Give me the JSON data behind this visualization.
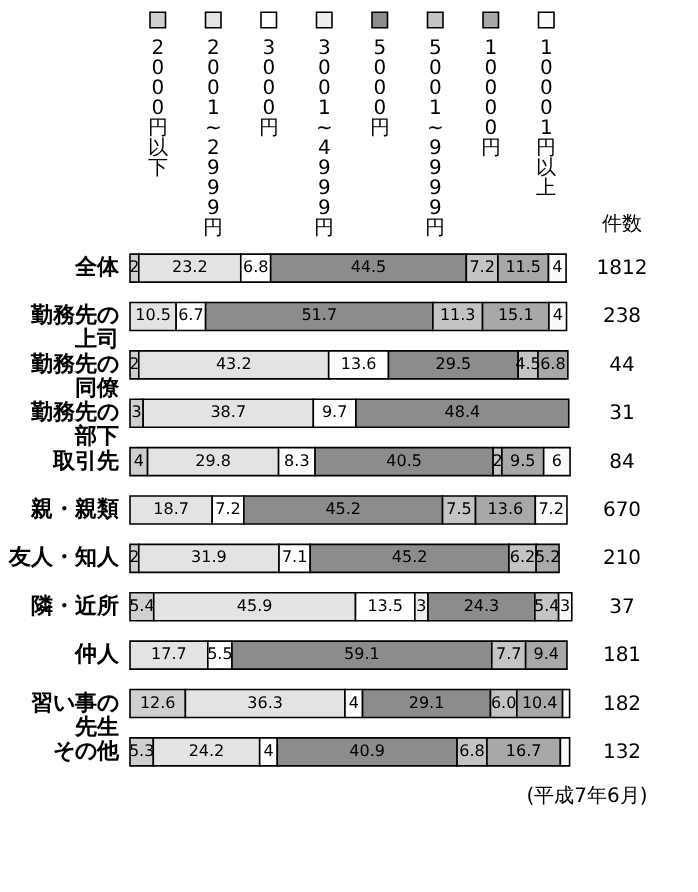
{
  "chart_data": {
    "type": "bar",
    "orientation": "horizontal",
    "stacked": true,
    "legend": "top",
    "tick_labels": "y",
    "grid": false,
    "xlim": [
      0,
      101
    ],
    "categories": [
      "全体",
      "勤務先の上司",
      "勤務先の同僚",
      "勤務先の部下",
      "取引先",
      "親・親類",
      "友人・知人",
      "隣・近所",
      "仲人",
      "習い事の先生",
      "その他"
    ],
    "series": [
      {
        "name": "2000円以下",
        "color": "#cfcfcf",
        "values": [
          2,
          null,
          2,
          3,
          4,
          null,
          2,
          5.4,
          null,
          12.6,
          5.3
        ],
        "value_labels": [
          "2",
          null,
          "2",
          "3",
          "4",
          null,
          "2",
          "5.4",
          null,
          "12.6",
          "5.3"
        ]
      },
      {
        "name": "2001~2999円",
        "color": "#e3e3e3",
        "values": [
          23.2,
          10.5,
          43.2,
          38.7,
          29.8,
          18.7,
          31.9,
          45.9,
          17.7,
          36.3,
          24.2
        ],
        "value_labels": [
          "23.2",
          "10.5",
          "43.2",
          "38.7",
          "29.8",
          "18.7",
          "31.9",
          "45.9",
          "17.7",
          "36.3",
          "24.2"
        ]
      },
      {
        "name": "3000円",
        "color": "#ffffff",
        "values": [
          6.8,
          6.7,
          13.6,
          9.7,
          8.3,
          7.2,
          7.1,
          13.5,
          5.5,
          4,
          4
        ],
        "value_labels": [
          "6.8",
          "6.7",
          "13.6",
          "9.7",
          "8.3",
          "7.2",
          "7.1",
          "13.5",
          "5.5",
          "4",
          "4"
        ]
      },
      {
        "name": "3001~4999円",
        "color": "#eeeeee",
        "values": [
          null,
          null,
          null,
          null,
          null,
          null,
          null,
          3,
          null,
          null,
          null
        ],
        "value_labels": [
          null,
          null,
          null,
          null,
          null,
          null,
          null,
          "3",
          null,
          null,
          null
        ]
      },
      {
        "name": "5000円",
        "color": "#8c8c8c",
        "values": [
          44.5,
          51.7,
          29.5,
          48.4,
          40.5,
          45.2,
          45.2,
          24.3,
          59.1,
          29.1,
          40.9
        ],
        "value_labels": [
          "44.5",
          "51.7",
          "29.5",
          "48.4",
          "40.5",
          "45.2",
          "45.2",
          "24.3",
          "59.1",
          "29.1",
          "40.9"
        ]
      },
      {
        "name": "5001~9999円",
        "color": "#c4c4c4",
        "values": [
          7.2,
          11.3,
          4.5,
          null,
          2,
          7.5,
          6.2,
          5.4,
          7.7,
          6.0,
          6.8
        ],
        "value_labels": [
          "7.2",
          "11.3",
          "4.5",
          null,
          "2",
          "7.5",
          "6.2",
          "5.4",
          "7.7",
          "6.0",
          "6.8"
        ]
      },
      {
        "name": "10000円",
        "color": "#a8a8a8",
        "values": [
          11.5,
          15.1,
          6.8,
          null,
          9.5,
          13.6,
          5.2,
          null,
          9.4,
          10.4,
          16.7
        ],
        "value_labels": [
          "11.5",
          "15.1",
          "6.8",
          null,
          "9.5",
          "13.6",
          "5.2",
          null,
          "9.4",
          "10.4",
          "16.7"
        ]
      },
      {
        "name": "10001円以上",
        "color": "#fafafa",
        "values": [
          4,
          4,
          null,
          null,
          6,
          7.2,
          null,
          3,
          null,
          1.6,
          2.1
        ],
        "value_labels": [
          "4",
          "4",
          null,
          null,
          "6",
          "7.2",
          null,
          "3",
          null,
          null,
          null
        ]
      }
    ],
    "annotations": [
      "件数",
      "1812",
      "238",
      "44",
      "31",
      "84",
      "670",
      "210",
      "37",
      "181",
      "182",
      "132",
      "(平成7年6月)"
    ]
  }
}
